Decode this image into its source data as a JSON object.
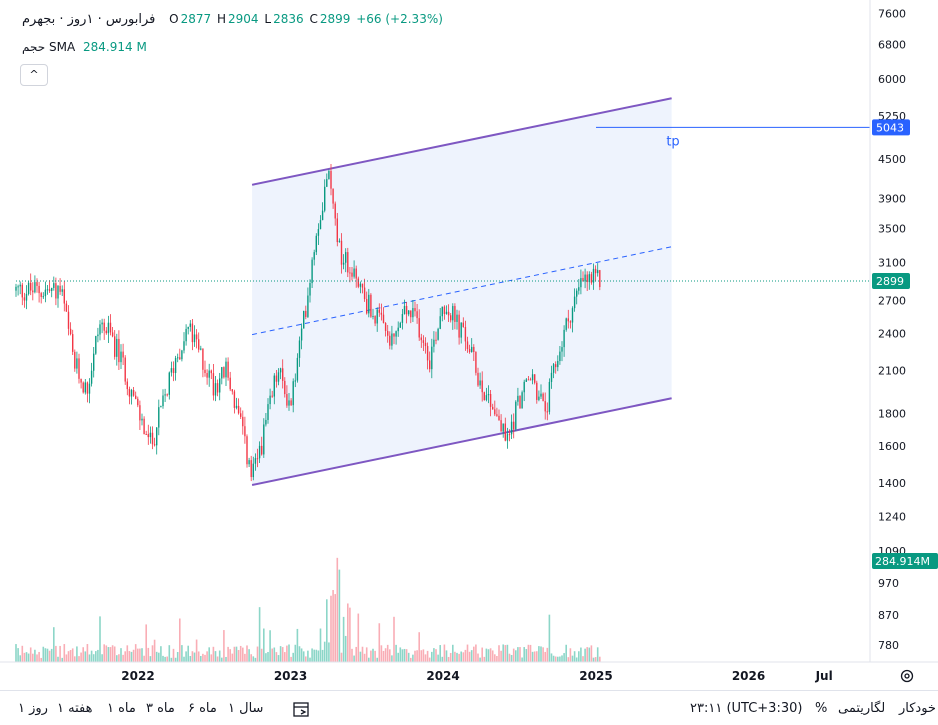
{
  "header": {
    "symbol_title": "فرابورس · ۱روز · بجهرم",
    "open_label": "O",
    "open_value": "2877",
    "high_label": "H",
    "high_value": "2904",
    "low_label": "L",
    "low_value": "2836",
    "close_label": "C",
    "close_value": "2899",
    "change": "+66 (+2.33%)",
    "volume_label": "حجم",
    "sma_label": "SMA",
    "sma_value": "284.914 M",
    "collapse_symbol": "^"
  },
  "toolbar": {
    "ranges": [
      "۱ روز",
      "۱ هفته",
      "۱ ماه",
      "۳ ماه",
      "۶ ماه",
      "۱ سال"
    ],
    "time": "۲۳:۱۱ (UTC+3:30)",
    "percent": "%",
    "log": "لگاریتمی",
    "auto": "خودکار"
  },
  "colors": {
    "up": "#089981",
    "down": "#f23645",
    "channel": "#7e57c2",
    "channel_fill": "#eef3fd",
    "price_line": "#2962ff",
    "last_price_bg": "#089981"
  },
  "chart_data": {
    "type": "candlestick",
    "symbol": "فرابورس",
    "interval": "۱روز",
    "y_scale": "log",
    "y_ticks": [
      7600,
      6800,
      6000,
      5250,
      4500,
      3900,
      3500,
      3100,
      2700,
      2400,
      2100,
      1800,
      1600,
      1400,
      1240,
      1090,
      970,
      870,
      780
    ],
    "x_ticks": [
      "2022",
      "2023",
      "2024",
      "2025",
      "2026",
      "Jul"
    ],
    "last_price": 2899,
    "tp_price": 5043,
    "tp_label": "tp",
    "volume_sma": "284.914M",
    "price_path": [
      [
        "2021-07-01",
        2800
      ],
      [
        "2021-08-01",
        2150
      ],
      [
        "2021-09-01",
        1950
      ],
      [
        "2021-10-01",
        2500
      ],
      [
        "2021-11-01",
        2350
      ],
      [
        "2021-12-01",
        2100
      ],
      [
        "2022-01-01",
        1800
      ],
      [
        "2022-02-01",
        1600
      ],
      [
        "2022-03-01",
        1850
      ],
      [
        "2022-04-01",
        2200
      ],
      [
        "2022-05-01",
        2450
      ],
      [
        "2022-06-01",
        2200
      ],
      [
        "2022-07-01",
        2000
      ],
      [
        "2022-08-01",
        2100
      ],
      [
        "2022-09-01",
        1750
      ],
      [
        "2022-10-01",
        1420
      ],
      [
        "2022-11-01",
        1700
      ],
      [
        "2022-12-01",
        2100
      ],
      [
        "2023-01-01",
        1850
      ],
      [
        "2023-02-01",
        2500
      ],
      [
        "2023-03-01",
        3400
      ],
      [
        "2023-04-01",
        4300
      ],
      [
        "2023-05-01",
        3200
      ],
      [
        "2023-06-01",
        3000
      ],
      [
        "2023-07-01",
        2700
      ],
      [
        "2023-08-01",
        2500
      ],
      [
        "2023-09-01",
        2300
      ],
      [
        "2023-10-01",
        2600
      ],
      [
        "2023-11-01",
        2500
      ],
      [
        "2023-12-01",
        2200
      ],
      [
        "2024-01-01",
        2700
      ],
      [
        "2024-02-01",
        2500
      ],
      [
        "2024-03-01",
        2300
      ],
      [
        "2024-04-01",
        2000
      ],
      [
        "2024-05-01",
        1850
      ],
      [
        "2024-06-01",
        1620
      ],
      [
        "2024-07-01",
        1900
      ],
      [
        "2024-08-01",
        2050
      ],
      [
        "2024-09-01",
        1800
      ],
      [
        "2024-10-01",
        2200
      ],
      [
        "2024-11-01",
        2600
      ],
      [
        "2024-12-01",
        2899
      ]
    ],
    "channel": {
      "upper": [
        [
          "2022-10-01",
          4100
        ],
        [
          "2025-07-01",
          5600
        ]
      ],
      "lower": [
        [
          "2022-10-01",
          1390
        ],
        [
          "2025-07-01",
          1900
        ]
      ],
      "middle": [
        [
          "2022-10-01",
          2390
        ],
        [
          "2025-07-01",
          3280
        ]
      ]
    }
  }
}
